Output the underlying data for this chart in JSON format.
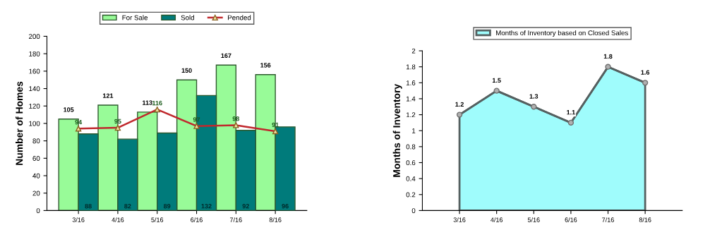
{
  "chart_data": [
    {
      "type": "bar",
      "ylabel": "Number of Homes",
      "categories": [
        "3/16",
        "4/16",
        "5/16",
        "6/16",
        "7/16",
        "8/16"
      ],
      "series": [
        {
          "name": "For Sale",
          "color": "#98fb98",
          "values": [
            105,
            121,
            113,
            150,
            167,
            156
          ]
        },
        {
          "name": "Sold",
          "color": "#007b7b",
          "values": [
            88,
            82,
            89,
            132,
            92,
            96
          ]
        },
        {
          "name": "Pended",
          "type": "line",
          "color": "#c0282d",
          "values": [
            94,
            95,
            116,
            97,
            98,
            91
          ],
          "marker": "triangle"
        }
      ],
      "ylim": [
        0,
        200
      ],
      "yticks": [
        0,
        20,
        40,
        60,
        80,
        100,
        120,
        140,
        160,
        180,
        200
      ],
      "data_labels": true,
      "legend": "top",
      "grid": false
    },
    {
      "type": "area",
      "ylabel": "Months of Inventory",
      "categories": [
        "3/16",
        "4/16",
        "5/16",
        "6/16",
        "7/16",
        "8/16"
      ],
      "series": [
        {
          "name": "Months of Inventory based on Closed Sales",
          "color": "#9ffcfc",
          "values": [
            1.2,
            1.5,
            1.3,
            1.1,
            1.8,
            1.6
          ]
        }
      ],
      "marker": "circle",
      "ylim": [
        0,
        2
      ],
      "yticks": [
        0,
        0.2,
        0.4,
        0.6,
        0.8,
        1,
        1.2,
        1.4,
        1.6,
        1.8,
        2
      ],
      "data_labels": true,
      "legend": "top",
      "grid": false
    }
  ]
}
